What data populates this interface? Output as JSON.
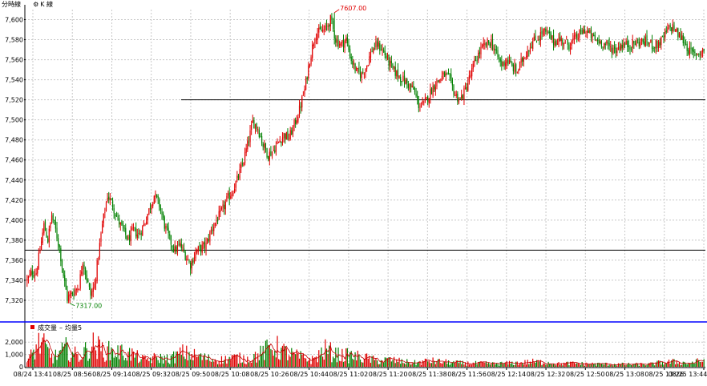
{
  "tabs": {
    "minute_line": "分時線",
    "k_line": "K 線",
    "k_icon": "settings-icon"
  },
  "volume_legend": {
    "volume_label": "成交量",
    "dash": "–",
    "ma_label": "均量5"
  },
  "colors": {
    "up": "#e00000",
    "down": "#008000",
    "grid": "#c8c8c8",
    "separator": "#0000ff",
    "ref_line": "#000000",
    "volume_ma": "#c00000"
  },
  "chart_data": [
    {
      "type": "candlestick",
      "interval": "1 minute",
      "ylim": [
        7300,
        7610
      ],
      "yticks": [
        "7,600",
        "7,580",
        "7,560",
        "7,540",
        "7,520",
        "7,500",
        "7,480",
        "7,460",
        "7,440",
        "7,420",
        "7,400",
        "7,380",
        "7,360",
        "7,340",
        "7,320"
      ],
      "high_annotation": "7607.00",
      "low_annotation": "7317.00",
      "high": 7607,
      "low": 7317,
      "reference_lines": [
        7520,
        7370
      ],
      "grid": true,
      "price_path": [
        [
          0,
          7340
        ],
        [
          4,
          7348
        ],
        [
          7,
          7348
        ],
        [
          10,
          7370
        ],
        [
          13,
          7395
        ],
        [
          16,
          7380
        ],
        [
          19,
          7405
        ],
        [
          22,
          7390
        ],
        [
          25,
          7372
        ],
        [
          28,
          7345
        ],
        [
          31,
          7322
        ],
        [
          34,
          7326
        ],
        [
          37,
          7330
        ],
        [
          40,
          7335
        ],
        [
          43,
          7360
        ],
        [
          46,
          7342
        ],
        [
          49,
          7325
        ],
        [
          52,
          7335
        ],
        [
          55,
          7365
        ],
        [
          58,
          7395
        ],
        [
          62,
          7425
        ],
        [
          66,
          7415
        ],
        [
          70,
          7400
        ],
        [
          74,
          7390
        ],
        [
          78,
          7380
        ],
        [
          82,
          7390
        ],
        [
          86,
          7385
        ],
        [
          90,
          7395
        ],
        [
          94,
          7410
        ],
        [
          98,
          7425
        ],
        [
          102,
          7415
        ],
        [
          106,
          7395
        ],
        [
          110,
          7380
        ],
        [
          114,
          7370
        ],
        [
          118,
          7375
        ],
        [
          122,
          7365
        ],
        [
          126,
          7355
        ],
        [
          130,
          7368
        ],
        [
          134,
          7372
        ],
        [
          138,
          7375
        ],
        [
          142,
          7390
        ],
        [
          146,
          7400
        ],
        [
          150,
          7408
        ],
        [
          154,
          7420
        ],
        [
          158,
          7428
        ],
        [
          162,
          7440
        ],
        [
          166,
          7455
        ],
        [
          170,
          7475
        ],
        [
          174,
          7498
        ],
        [
          178,
          7492
        ],
        [
          182,
          7475
        ],
        [
          186,
          7465
        ],
        [
          190,
          7470
        ],
        [
          194,
          7478
        ],
        [
          198,
          7485
        ],
        [
          202,
          7482
        ],
        [
          206,
          7495
        ],
        [
          210,
          7510
        ],
        [
          214,
          7530
        ],
        [
          218,
          7560
        ],
        [
          222,
          7585
        ],
        [
          226,
          7588
        ],
        [
          230,
          7590
        ],
        [
          234,
          7600
        ],
        [
          238,
          7580
        ],
        [
          242,
          7575
        ],
        [
          246,
          7580
        ],
        [
          250,
          7560
        ],
        [
          254,
          7548
        ],
        [
          258,
          7545
        ],
        [
          262,
          7555
        ],
        [
          266,
          7570
        ],
        [
          270,
          7575
        ],
        [
          274,
          7570
        ],
        [
          278,
          7560
        ],
        [
          282,
          7550
        ],
        [
          286,
          7545
        ],
        [
          290,
          7540
        ],
        [
          294,
          7535
        ],
        [
          298,
          7530
        ],
        [
          302,
          7515
        ],
        [
          306,
          7515
        ],
        [
          310,
          7525
        ],
        [
          314,
          7535
        ],
        [
          318,
          7540
        ],
        [
          322,
          7545
        ],
        [
          326,
          7540
        ],
        [
          330,
          7525
        ],
        [
          334,
          7520
        ],
        [
          338,
          7530
        ],
        [
          342,
          7545
        ],
        [
          346,
          7560
        ],
        [
          350,
          7570
        ],
        [
          354,
          7575
        ],
        [
          358,
          7578
        ],
        [
          362,
          7565
        ],
        [
          366,
          7555
        ],
        [
          370,
          7560
        ],
        [
          374,
          7553
        ],
        [
          378,
          7548
        ],
        [
          382,
          7560
        ],
        [
          386,
          7570
        ],
        [
          390,
          7578
        ],
        [
          394,
          7582
        ],
        [
          398,
          7588
        ],
        [
          402,
          7585
        ],
        [
          406,
          7578
        ],
        [
          410,
          7580
        ],
        [
          414,
          7578
        ],
        [
          418,
          7575
        ],
        [
          422,
          7580
        ],
        [
          426,
          7585
        ],
        [
          430,
          7590
        ],
        [
          434,
          7585
        ],
        [
          438,
          7580
        ],
        [
          442,
          7578
        ],
        [
          446,
          7575
        ],
        [
          450,
          7572
        ],
        [
          454,
          7570
        ],
        [
          458,
          7575
        ],
        [
          462,
          7575
        ],
        [
          466,
          7575
        ],
        [
          470,
          7577
        ],
        [
          474,
          7578
        ],
        [
          478,
          7578
        ],
        [
          482,
          7575
        ],
        [
          486,
          7575
        ],
        [
          490,
          7580
        ],
        [
          494,
          7590
        ],
        [
          498,
          7593
        ],
        [
          502,
          7585
        ],
        [
          506,
          7580
        ],
        [
          510,
          7570
        ],
        [
          514,
          7565
        ],
        [
          518,
          7567
        ],
        [
          522,
          7570
        ]
      ]
    },
    {
      "type": "bar",
      "title": "成交量",
      "ylim": [
        0,
        2600
      ],
      "yticks": [
        "2,000",
        "1,000",
        "0"
      ],
      "moving_average": "均量5",
      "volume_profile": [
        [
          0,
          500
        ],
        [
          10,
          2500
        ],
        [
          20,
          900
        ],
        [
          30,
          1800
        ],
        [
          40,
          1000
        ],
        [
          50,
          2200
        ],
        [
          60,
          1600
        ],
        [
          70,
          1500
        ],
        [
          80,
          1300
        ],
        [
          90,
          700
        ],
        [
          100,
          900
        ],
        [
          110,
          800
        ],
        [
          120,
          1400
        ],
        [
          130,
          1100
        ],
        [
          140,
          800
        ],
        [
          150,
          700
        ],
        [
          160,
          900
        ],
        [
          170,
          800
        ],
        [
          180,
          1300
        ],
        [
          190,
          2100
        ],
        [
          200,
          1400
        ],
        [
          210,
          1000
        ],
        [
          220,
          700
        ],
        [
          230,
          1700
        ],
        [
          240,
          1200
        ],
        [
          250,
          1100
        ],
        [
          260,
          900
        ],
        [
          270,
          600
        ],
        [
          280,
          700
        ],
        [
          290,
          500
        ],
        [
          300,
          400
        ],
        [
          310,
          600
        ],
        [
          320,
          500
        ],
        [
          330,
          400
        ],
        [
          340,
          350
        ],
        [
          350,
          350
        ],
        [
          360,
          300
        ],
        [
          370,
          350
        ],
        [
          380,
          400
        ],
        [
          390,
          500
        ],
        [
          400,
          450
        ],
        [
          410,
          300
        ],
        [
          420,
          350
        ],
        [
          430,
          300
        ],
        [
          440,
          280
        ],
        [
          450,
          260
        ],
        [
          460,
          250
        ],
        [
          470,
          250
        ],
        [
          480,
          260
        ],
        [
          490,
          450
        ],
        [
          500,
          500
        ],
        [
          510,
          350
        ],
        [
          522,
          650
        ]
      ]
    }
  ],
  "x_axis_labels": [
    "08/24 13:41",
    "08/25 08:56",
    "08/25 09:14",
    "08/25 09:32",
    "08/25 09:50",
    "08/25 10:08",
    "08/25 10:26",
    "08/25 10:44",
    "08/25 11:02",
    "08/25 11:20",
    "08/25 11:38",
    "08/25 11:56",
    "08/25 12:14",
    "08/25 12:32",
    "08/25 12:50",
    "08/25 13:08",
    "08/25 13:26",
    "08/25 13:44"
  ]
}
